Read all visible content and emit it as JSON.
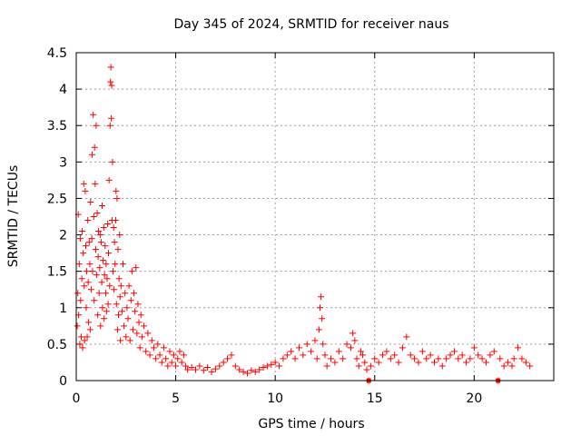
{
  "chart_data": {
    "type": "scatter",
    "title": "Day 345 of 2024, SRMTID for receiver naus",
    "xlabel": "GPS time / hours",
    "ylabel": "SRMTID / TECUs",
    "xlim": [
      0,
      24
    ],
    "ylim": [
      0,
      4.5
    ],
    "xticks": [
      0,
      5,
      10,
      15,
      20
    ],
    "yticks": [
      0,
      0.5,
      1,
      1.5,
      2,
      2.5,
      3,
      3.5,
      4,
      4.5
    ],
    "xtick_labels": [
      "0",
      "5",
      "10",
      "15",
      "20"
    ],
    "ytick_labels": [
      "0",
      "0.5",
      "1",
      "1.5",
      "2",
      "2.5",
      "3",
      "3.5",
      "4",
      "4.5"
    ],
    "grid": true,
    "legend": "none",
    "series": [
      {
        "name": "SRMTID",
        "marker": "plus",
        "color": "#ff0000",
        "points": [
          [
            0.05,
            0.75
          ],
          [
            0.08,
            1.2
          ],
          [
            0.1,
            2.28
          ],
          [
            0.12,
            0.9
          ],
          [
            0.15,
            1.6
          ],
          [
            0.18,
            0.5
          ],
          [
            0.2,
            1.95
          ],
          [
            0.22,
            1.1
          ],
          [
            0.25,
            0.6
          ],
          [
            0.28,
            1.4
          ],
          [
            0.3,
            2.05
          ],
          [
            0.32,
            0.45
          ],
          [
            0.35,
            1.75
          ],
          [
            0.38,
            2.7
          ],
          [
            0.4,
            1.3
          ],
          [
            0.42,
            0.55
          ],
          [
            0.45,
            2.6
          ],
          [
            0.48,
            1.85
          ],
          [
            0.5,
            1.0
          ],
          [
            0.52,
            1.5
          ],
          [
            0.55,
            0.6
          ],
          [
            0.58,
            2.2
          ],
          [
            0.6,
            1.35
          ],
          [
            0.62,
            0.8
          ],
          [
            0.65,
            1.9
          ],
          [
            0.68,
            1.6
          ],
          [
            0.7,
            0.7
          ],
          [
            0.72,
            2.45
          ],
          [
            0.75,
            1.25
          ],
          [
            0.78,
            1.95
          ],
          [
            0.8,
            3.1
          ],
          [
            0.82,
            1.5
          ],
          [
            0.85,
            3.65
          ],
          [
            0.88,
            2.25
          ],
          [
            0.9,
            1.1
          ],
          [
            0.92,
            3.2
          ],
          [
            0.95,
            2.7
          ],
          [
            0.98,
            1.8
          ],
          [
            1.0,
            3.5
          ],
          [
            1.02,
            1.45
          ],
          [
            1.05,
            2.3
          ],
          [
            1.08,
            0.9
          ],
          [
            1.1,
            1.7
          ],
          [
            1.12,
            2.05
          ],
          [
            1.15,
            1.2
          ],
          [
            1.18,
            1.55
          ],
          [
            1.2,
            2.0
          ],
          [
            1.22,
            0.75
          ],
          [
            1.25,
            1.9
          ],
          [
            1.28,
            1.35
          ],
          [
            1.3,
            2.4
          ],
          [
            1.32,
            1.0
          ],
          [
            1.35,
            1.65
          ],
          [
            1.38,
            2.1
          ],
          [
            1.4,
            0.85
          ],
          [
            1.42,
            1.45
          ],
          [
            1.45,
            1.85
          ],
          [
            1.48,
            1.2
          ],
          [
            1.5,
            1.6
          ],
          [
            1.52,
            0.95
          ],
          [
            1.55,
            1.4
          ],
          [
            1.58,
            2.15
          ],
          [
            1.6,
            1.05
          ],
          [
            1.62,
            1.75
          ],
          [
            1.65,
            2.75
          ],
          [
            1.68,
            1.3
          ],
          [
            1.7,
            3.5
          ],
          [
            1.72,
            4.1
          ],
          [
            1.74,
            4.3
          ],
          [
            1.76,
            3.6
          ],
          [
            1.78,
            4.05
          ],
          [
            1.8,
            2.2
          ],
          [
            1.82,
            3.0
          ],
          [
            1.85,
            1.5
          ],
          [
            1.88,
            2.1
          ],
          [
            1.9,
            1.25
          ],
          [
            1.92,
            1.9
          ],
          [
            1.95,
            1.6
          ],
          [
            1.98,
            2.2
          ],
          [
            2.0,
            2.6
          ],
          [
            2.02,
            1.05
          ],
          [
            2.05,
            2.5
          ],
          [
            2.08,
            0.7
          ],
          [
            2.1,
            1.8
          ],
          [
            2.12,
            0.9
          ],
          [
            2.15,
            1.4
          ],
          [
            2.18,
            2.0
          ],
          [
            2.2,
            1.15
          ],
          [
            2.22,
            0.55
          ],
          [
            2.25,
            1.3
          ],
          [
            2.3,
            0.95
          ],
          [
            2.35,
            1.6
          ],
          [
            2.4,
            0.75
          ],
          [
            2.45,
            1.2
          ],
          [
            2.5,
            0.6
          ],
          [
            2.55,
            1.0
          ],
          [
            2.6,
            0.85
          ],
          [
            2.65,
            1.3
          ],
          [
            2.7,
            0.55
          ],
          [
            2.75,
            1.1
          ],
          [
            2.8,
            1.5
          ],
          [
            2.85,
            0.7
          ],
          [
            2.9,
            1.2
          ],
          [
            2.95,
            0.95
          ],
          [
            3.0,
            1.55
          ],
          [
            3.05,
            0.65
          ],
          [
            3.1,
            1.05
          ],
          [
            3.15,
            0.8
          ],
          [
            3.2,
            0.45
          ],
          [
            3.25,
            0.9
          ],
          [
            3.3,
            0.6
          ],
          [
            3.4,
            0.75
          ],
          [
            3.5,
            0.4
          ],
          [
            3.6,
            0.65
          ],
          [
            3.7,
            0.35
          ],
          [
            3.8,
            0.55
          ],
          [
            3.9,
            0.45
          ],
          [
            4.0,
            0.3
          ],
          [
            4.1,
            0.5
          ],
          [
            4.2,
            0.35
          ],
          [
            4.3,
            0.25
          ],
          [
            4.4,
            0.45
          ],
          [
            4.5,
            0.3
          ],
          [
            4.6,
            0.2
          ],
          [
            4.7,
            0.4
          ],
          [
            4.8,
            0.25
          ],
          [
            4.9,
            0.35
          ],
          [
            5.0,
            0.2
          ],
          [
            5.1,
            0.3
          ],
          [
            5.2,
            0.4
          ],
          [
            5.3,
            0.25
          ],
          [
            5.4,
            0.35
          ],
          [
            5.5,
            0.2
          ],
          [
            5.6,
            0.15
          ],
          [
            5.8,
            0.18
          ],
          [
            6.0,
            0.15
          ],
          [
            6.2,
            0.2
          ],
          [
            6.4,
            0.14
          ],
          [
            6.6,
            0.18
          ],
          [
            6.8,
            0.12
          ],
          [
            7.0,
            0.16
          ],
          [
            7.2,
            0.2
          ],
          [
            7.4,
            0.25
          ],
          [
            7.6,
            0.3
          ],
          [
            7.8,
            0.35
          ],
          [
            8.0,
            0.2
          ],
          [
            8.2,
            0.15
          ],
          [
            8.4,
            0.12
          ],
          [
            8.6,
            0.1
          ],
          [
            8.8,
            0.14
          ],
          [
            9.0,
            0.12
          ],
          [
            9.2,
            0.15
          ],
          [
            9.4,
            0.18
          ],
          [
            9.6,
            0.2
          ],
          [
            9.8,
            0.22
          ],
          [
            10.0,
            0.25
          ],
          [
            10.2,
            0.2
          ],
          [
            10.4,
            0.3
          ],
          [
            10.6,
            0.35
          ],
          [
            10.8,
            0.4
          ],
          [
            11.0,
            0.3
          ],
          [
            11.2,
            0.45
          ],
          [
            11.4,
            0.35
          ],
          [
            11.6,
            0.5
          ],
          [
            11.8,
            0.4
          ],
          [
            12.0,
            0.55
          ],
          [
            12.1,
            0.3
          ],
          [
            12.2,
            0.7
          ],
          [
            12.25,
            1.0
          ],
          [
            12.3,
            1.15
          ],
          [
            12.35,
            0.85
          ],
          [
            12.4,
            0.5
          ],
          [
            12.5,
            0.35
          ],
          [
            12.6,
            0.2
          ],
          [
            12.8,
            0.3
          ],
          [
            13.0,
            0.25
          ],
          [
            13.2,
            0.4
          ],
          [
            13.4,
            0.3
          ],
          [
            13.6,
            0.5
          ],
          [
            13.8,
            0.45
          ],
          [
            13.9,
            0.65
          ],
          [
            14.0,
            0.55
          ],
          [
            14.1,
            0.3
          ],
          [
            14.2,
            0.2
          ],
          [
            14.3,
            0.4
          ],
          [
            14.4,
            0.35
          ],
          [
            14.5,
            0.25
          ],
          [
            14.6,
            0.15
          ],
          [
            14.7,
            0.0
          ],
          [
            14.8,
            0.2
          ],
          [
            15.0,
            0.3
          ],
          [
            15.2,
            0.25
          ],
          [
            15.4,
            0.35
          ],
          [
            15.6,
            0.4
          ],
          [
            15.8,
            0.3
          ],
          [
            16.0,
            0.35
          ],
          [
            16.2,
            0.25
          ],
          [
            16.4,
            0.45
          ],
          [
            16.6,
            0.6
          ],
          [
            16.8,
            0.35
          ],
          [
            17.0,
            0.3
          ],
          [
            17.2,
            0.25
          ],
          [
            17.4,
            0.4
          ],
          [
            17.6,
            0.3
          ],
          [
            17.8,
            0.35
          ],
          [
            18.0,
            0.25
          ],
          [
            18.2,
            0.3
          ],
          [
            18.4,
            0.2
          ],
          [
            18.6,
            0.3
          ],
          [
            18.8,
            0.35
          ],
          [
            19.0,
            0.4
          ],
          [
            19.2,
            0.3
          ],
          [
            19.4,
            0.35
          ],
          [
            19.6,
            0.25
          ],
          [
            19.8,
            0.3
          ],
          [
            20.0,
            0.45
          ],
          [
            20.2,
            0.35
          ],
          [
            20.4,
            0.3
          ],
          [
            20.6,
            0.25
          ],
          [
            20.8,
            0.35
          ],
          [
            21.0,
            0.4
          ],
          [
            21.2,
            0.0
          ],
          [
            21.3,
            0.3
          ],
          [
            21.5,
            0.2
          ],
          [
            21.7,
            0.25
          ],
          [
            21.9,
            0.2
          ],
          [
            22.0,
            0.3
          ],
          [
            22.2,
            0.45
          ],
          [
            22.4,
            0.3
          ],
          [
            22.6,
            0.25
          ],
          [
            22.8,
            0.2
          ]
        ]
      }
    ],
    "square_markers": [
      [
        14.7,
        0.0
      ],
      [
        21.2,
        0.0
      ]
    ]
  }
}
